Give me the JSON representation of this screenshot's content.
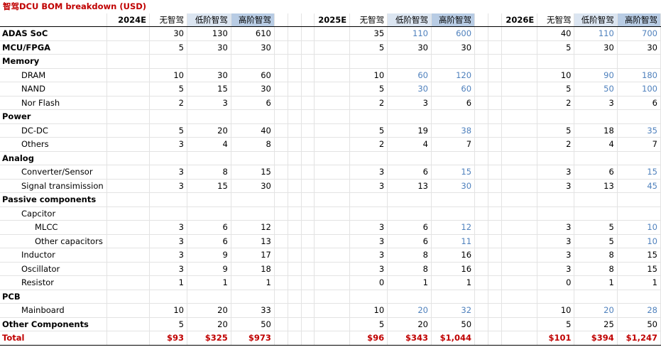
{
  "title": "智驾DCU BOM breakdown (USD)",
  "years": [
    "2024E",
    "2025E",
    "2026E"
  ],
  "col_headers": [
    "无智驾",
    "低阶智驾",
    "高阶智驾"
  ],
  "rows": [
    {
      "label": "ADAS SoC",
      "level": 0,
      "values": [
        [
          30,
          130,
          610
        ],
        [
          35,
          110,
          600
        ],
        [
          40,
          110,
          700
        ]
      ],
      "blue": [
        [
          0,
          0,
          0
        ],
        [
          0,
          1,
          1
        ],
        [
          0,
          1,
          1
        ]
      ]
    },
    {
      "label": "MCU/FPGA",
      "level": 0,
      "values": [
        [
          5,
          30,
          30
        ],
        [
          5,
          30,
          30
        ],
        [
          5,
          30,
          30
        ]
      ],
      "blue": [
        [
          0,
          0,
          0
        ],
        [
          0,
          0,
          0
        ],
        [
          0,
          0,
          0
        ]
      ]
    },
    {
      "label": "Memory",
      "level": 0,
      "values": null
    },
    {
      "label": "DRAM",
      "level": 1,
      "values": [
        [
          10,
          30,
          60
        ],
        [
          10,
          60,
          120
        ],
        [
          10,
          90,
          180
        ]
      ],
      "blue": [
        [
          0,
          0,
          0
        ],
        [
          0,
          1,
          1
        ],
        [
          0,
          1,
          1
        ]
      ]
    },
    {
      "label": "NAND",
      "level": 1,
      "values": [
        [
          5,
          15,
          30
        ],
        [
          5,
          30,
          60
        ],
        [
          5,
          50,
          100
        ]
      ],
      "blue": [
        [
          0,
          0,
          0
        ],
        [
          0,
          1,
          1
        ],
        [
          0,
          1,
          1
        ]
      ]
    },
    {
      "label": "Nor Flash",
      "level": 1,
      "values": [
        [
          2,
          3,
          6
        ],
        [
          2,
          3,
          6
        ],
        [
          2,
          3,
          6
        ]
      ],
      "blue": [
        [
          0,
          0,
          0
        ],
        [
          0,
          0,
          0
        ],
        [
          0,
          0,
          0
        ]
      ]
    },
    {
      "label": "Power",
      "level": 0,
      "values": null
    },
    {
      "label": "DC-DC",
      "level": 1,
      "values": [
        [
          5,
          20,
          40
        ],
        [
          5,
          19,
          38
        ],
        [
          5,
          18,
          35
        ]
      ],
      "blue": [
        [
          0,
          0,
          0
        ],
        [
          0,
          0,
          1
        ],
        [
          0,
          0,
          1
        ]
      ]
    },
    {
      "label": "Others",
      "level": 1,
      "values": [
        [
          3,
          4,
          8
        ],
        [
          2,
          4,
          7
        ],
        [
          2,
          4,
          7
        ]
      ],
      "blue": [
        [
          0,
          0,
          0
        ],
        [
          0,
          0,
          0
        ],
        [
          0,
          0,
          0
        ]
      ]
    },
    {
      "label": "Analog",
      "level": 0,
      "values": null
    },
    {
      "label": "Converter/Sensor",
      "level": 1,
      "values": [
        [
          3,
          8,
          15
        ],
        [
          3,
          6,
          15
        ],
        [
          3,
          6,
          15
        ]
      ],
      "blue": [
        [
          0,
          0,
          0
        ],
        [
          0,
          0,
          1
        ],
        [
          0,
          0,
          1
        ]
      ]
    },
    {
      "label": "Signal transimission",
      "level": 1,
      "values": [
        [
          3,
          15,
          30
        ],
        [
          3,
          13,
          30
        ],
        [
          3,
          13,
          45
        ]
      ],
      "blue": [
        [
          0,
          0,
          0
        ],
        [
          0,
          0,
          1
        ],
        [
          0,
          0,
          1
        ]
      ]
    },
    {
      "label": "Passive components",
      "level": 0,
      "values": null
    },
    {
      "label": "Capcitor",
      "level": 1,
      "values": null
    },
    {
      "label": "MLCC",
      "level": 2,
      "values": [
        [
          3,
          6,
          12
        ],
        [
          3,
          6,
          12
        ],
        [
          3,
          5,
          10
        ]
      ],
      "blue": [
        [
          0,
          0,
          0
        ],
        [
          0,
          0,
          1
        ],
        [
          0,
          0,
          1
        ]
      ]
    },
    {
      "label": "Other capacitors",
      "level": 2,
      "values": [
        [
          3,
          6,
          13
        ],
        [
          3,
          6,
          11
        ],
        [
          3,
          5,
          10
        ]
      ],
      "blue": [
        [
          0,
          0,
          0
        ],
        [
          0,
          0,
          1
        ],
        [
          0,
          0,
          1
        ]
      ]
    },
    {
      "label": "Inductor",
      "level": 1,
      "values": [
        [
          3,
          9,
          17
        ],
        [
          3,
          8,
          16
        ],
        [
          3,
          8,
          15
        ]
      ],
      "blue": [
        [
          0,
          0,
          0
        ],
        [
          0,
          0,
          0
        ],
        [
          0,
          0,
          0
        ]
      ]
    },
    {
      "label": "Oscillator",
      "level": 1,
      "values": [
        [
          3,
          9,
          18
        ],
        [
          3,
          8,
          16
        ],
        [
          3,
          8,
          15
        ]
      ],
      "blue": [
        [
          0,
          0,
          0
        ],
        [
          0,
          0,
          0
        ],
        [
          0,
          0,
          0
        ]
      ]
    },
    {
      "label": "Resistor",
      "level": 1,
      "values": [
        [
          1,
          1,
          1
        ],
        [
          0,
          1,
          1
        ],
        [
          0,
          1,
          1
        ]
      ],
      "blue": [
        [
          0,
          0,
          0
        ],
        [
          0,
          0,
          0
        ],
        [
          0,
          0,
          0
        ]
      ]
    },
    {
      "label": "PCB",
      "level": 0,
      "values": null
    },
    {
      "label": "Mainboard",
      "level": 1,
      "values": [
        [
          10,
          20,
          33
        ],
        [
          10,
          20,
          32
        ],
        [
          10,
          20,
          28
        ]
      ],
      "blue": [
        [
          0,
          0,
          0
        ],
        [
          0,
          1,
          1
        ],
        [
          0,
          1,
          1
        ]
      ]
    },
    {
      "label": "Other Components",
      "level": 0,
      "values": [
        [
          5,
          20,
          50
        ],
        [
          5,
          20,
          50
        ],
        [
          5,
          25,
          50
        ]
      ],
      "blue": [
        [
          0,
          0,
          0
        ],
        [
          0,
          0,
          0
        ],
        [
          0,
          0,
          0
        ]
      ]
    }
  ],
  "total": {
    "label": "Total",
    "values": [
      [
        "$93",
        "$325",
        "$973"
      ],
      [
        "$96",
        "$343",
        "$1,044"
      ],
      [
        "$101",
        "$394",
        "$1,247"
      ]
    ]
  }
}
